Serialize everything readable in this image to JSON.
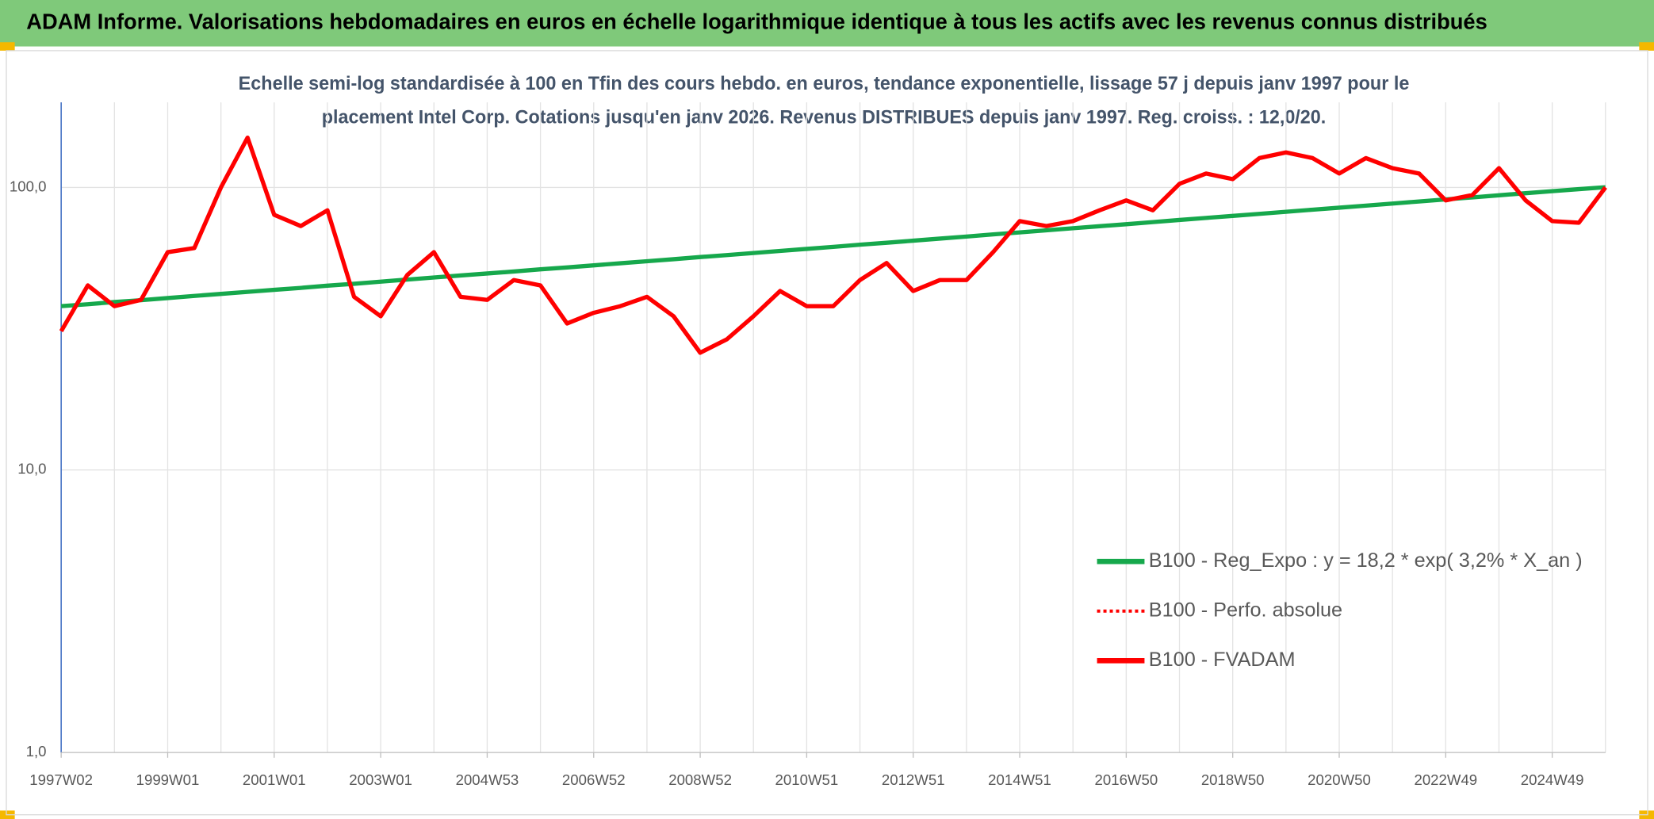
{
  "chart_data": {
    "type": "line",
    "title": "ADAM Informe. Valorisations hebdomadaires en euros en échelle logarithmique identique à tous les actifs avec les revenus connus distribués",
    "subtitle": [
      "Echelle semi-log standardisée à 100 en Tfin des cours hebdo. en euros, tendance exponentielle, lissage 57 j depuis janv 1997 pour le",
      "placement Intel Corp. Cotations jusqu'en janv 2026. Revenus DISTRIBUES depuis janv 1997. Reg. croiss. : 12,0/20."
    ],
    "categories": [
      "1997W02",
      null,
      null,
      null,
      "1999W01",
      null,
      null,
      null,
      "2001W01",
      null,
      null,
      null,
      "2003W01",
      null,
      null,
      null,
      "2004W53",
      null,
      null,
      null,
      "2006W52",
      null,
      null,
      null,
      "2008W52",
      null,
      null,
      null,
      "2010W51",
      null,
      null,
      null,
      "2012W51",
      null,
      null,
      null,
      "2014W51",
      null,
      null,
      null,
      "2016W50",
      null,
      null,
      null,
      "2018W50",
      null,
      null,
      null,
      "2020W50",
      null,
      null,
      null,
      "2022W49",
      null,
      null,
      null,
      "2024W49",
      null,
      null
    ],
    "series": [
      {
        "name": "B100 - Reg_Expo : y = 18,2 * exp( 3,2% *  X_an )",
        "color": "#16a84c",
        "dash": "solid",
        "values": [
          38.0,
          38.6,
          39.3,
          39.9,
          40.6,
          41.3,
          42.0,
          42.7,
          43.4,
          44.1,
          44.9,
          45.6,
          46.4,
          47.2,
          48.0,
          48.8,
          49.6,
          50.4,
          51.3,
          52.1,
          53.0,
          53.9,
          54.8,
          55.7,
          56.7,
          57.6,
          58.6,
          59.6,
          60.6,
          61.6,
          62.7,
          63.7,
          64.8,
          65.9,
          67.0,
          68.2,
          69.3,
          70.5,
          71.7,
          72.9,
          74.1,
          75.4,
          76.7,
          78.0,
          79.3,
          80.6,
          82.0,
          83.4,
          84.8,
          86.2,
          87.7,
          89.2,
          90.7,
          92.2,
          93.8,
          95.4,
          97.0,
          98.6,
          100.2
        ]
      },
      {
        "name": "B100 - Perfo. absolue",
        "color": "#ff0000",
        "dash": "dotted",
        "values": [
          31,
          45,
          38,
          40,
          59,
          61,
          100,
          150,
          80,
          73,
          83,
          41,
          35,
          49,
          59,
          41,
          40,
          47,
          45,
          33,
          36,
          38,
          41,
          35,
          26,
          29,
          35,
          43,
          38,
          38,
          47,
          54,
          43,
          47,
          47,
          59,
          76,
          73,
          76,
          83,
          90,
          83,
          103,
          112,
          107,
          127,
          133,
          127,
          112,
          127,
          117,
          112,
          90,
          94,
          117,
          90,
          76,
          75,
          100
        ]
      },
      {
        "name": "B100 - FVADAM",
        "color": "#ff0000",
        "dash": "solid",
        "values": [
          31,
          45,
          38,
          40,
          59,
          61,
          100,
          150,
          80,
          73,
          83,
          41,
          35,
          49,
          59,
          41,
          40,
          47,
          45,
          33,
          36,
          38,
          41,
          35,
          26,
          29,
          35,
          43,
          38,
          38,
          47,
          54,
          43,
          47,
          47,
          59,
          76,
          73,
          76,
          83,
          90,
          83,
          103,
          112,
          107,
          127,
          133,
          127,
          112,
          127,
          117,
          112,
          90,
          94,
          117,
          90,
          76,
          75,
          100
        ]
      }
    ],
    "log_scale": true,
    "ylim": [
      1,
      200
    ],
    "yticks": [
      {
        "value": 1,
        "label": "1,0"
      },
      {
        "value": 10,
        "label": "10,0"
      },
      {
        "value": 100,
        "label": "100,0"
      }
    ],
    "grid": true,
    "legend": "lower right"
  }
}
